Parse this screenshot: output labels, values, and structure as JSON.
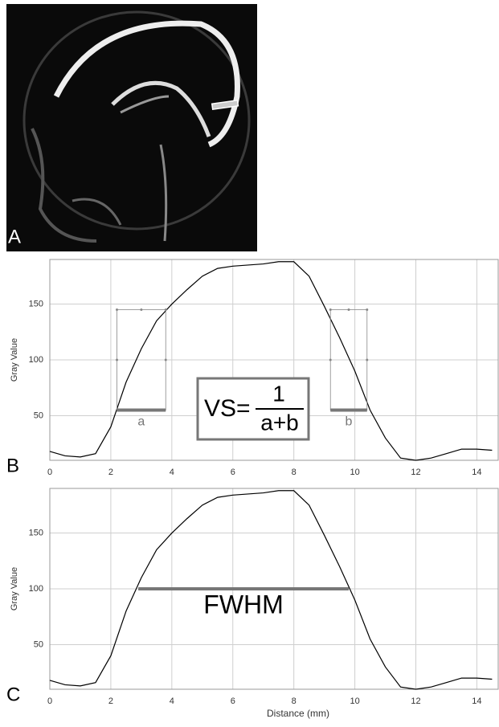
{
  "panel_a": {
    "label": "A"
  },
  "chart_data": [
    {
      "type": "line",
      "panel_label": "B",
      "y_label": "Gray Value",
      "xlim": [
        0,
        14.7
      ],
      "ylim": [
        10,
        190
      ],
      "xticks": [
        0,
        2,
        4,
        6,
        8,
        10,
        12,
        14
      ],
      "yticks": [
        50,
        100,
        150
      ],
      "grid": true,
      "x": [
        0,
        0.5,
        1,
        1.5,
        2,
        2.5,
        3,
        3.5,
        4,
        4.5,
        5,
        5.5,
        6,
        6.5,
        7,
        7.5,
        8,
        8.5,
        9,
        9.5,
        10,
        10.5,
        11,
        11.5,
        12,
        12.5,
        13,
        13.5,
        14,
        14.5
      ],
      "series": [
        {
          "color": "#000000",
          "values": [
            18,
            14,
            13,
            16,
            40,
            80,
            110,
            135,
            150,
            163,
            175,
            182,
            184,
            185,
            186,
            188,
            188,
            175,
            148,
            120,
            90,
            55,
            30,
            12,
            10,
            12,
            16,
            20,
            20,
            19
          ]
        }
      ],
      "intervals": [
        {
          "label": "a",
          "x": [
            2.2,
            3.8
          ],
          "y": [
            55,
            145
          ]
        },
        {
          "label": "b",
          "x": [
            9.2,
            10.4
          ],
          "y": [
            55,
            145
          ]
        }
      ],
      "formula": {
        "lhs": "VS=",
        "numerator": "1",
        "denominator": "a+b"
      }
    },
    {
      "type": "line",
      "panel_label": "C",
      "y_label": "Gray Value",
      "x_label": "Distance (mm)",
      "xlim": [
        0,
        14.7
      ],
      "ylim": [
        10,
        190
      ],
      "xticks": [
        0,
        2,
        4,
        6,
        8,
        10,
        12,
        14
      ],
      "yticks": [
        50,
        100,
        150
      ],
      "grid": true,
      "x": [
        0,
        0.5,
        1,
        1.5,
        2,
        2.5,
        3,
        3.5,
        4,
        4.5,
        5,
        5.5,
        6,
        6.5,
        7,
        7.5,
        8,
        8.5,
        9,
        9.5,
        10,
        10.5,
        11,
        11.5,
        12,
        12.5,
        13,
        13.5,
        14,
        14.5
      ],
      "series": [
        {
          "color": "#000000",
          "values": [
            18,
            14,
            13,
            16,
            40,
            80,
            110,
            135,
            150,
            163,
            175,
            182,
            184,
            185,
            186,
            188,
            188,
            175,
            148,
            120,
            90,
            55,
            30,
            12,
            10,
            12,
            16,
            20,
            20,
            19
          ]
        }
      ],
      "intervals": [
        {
          "label": "FWHM",
          "x": [
            2.9,
            9.8
          ],
          "y": [
            100
          ]
        }
      ]
    }
  ]
}
